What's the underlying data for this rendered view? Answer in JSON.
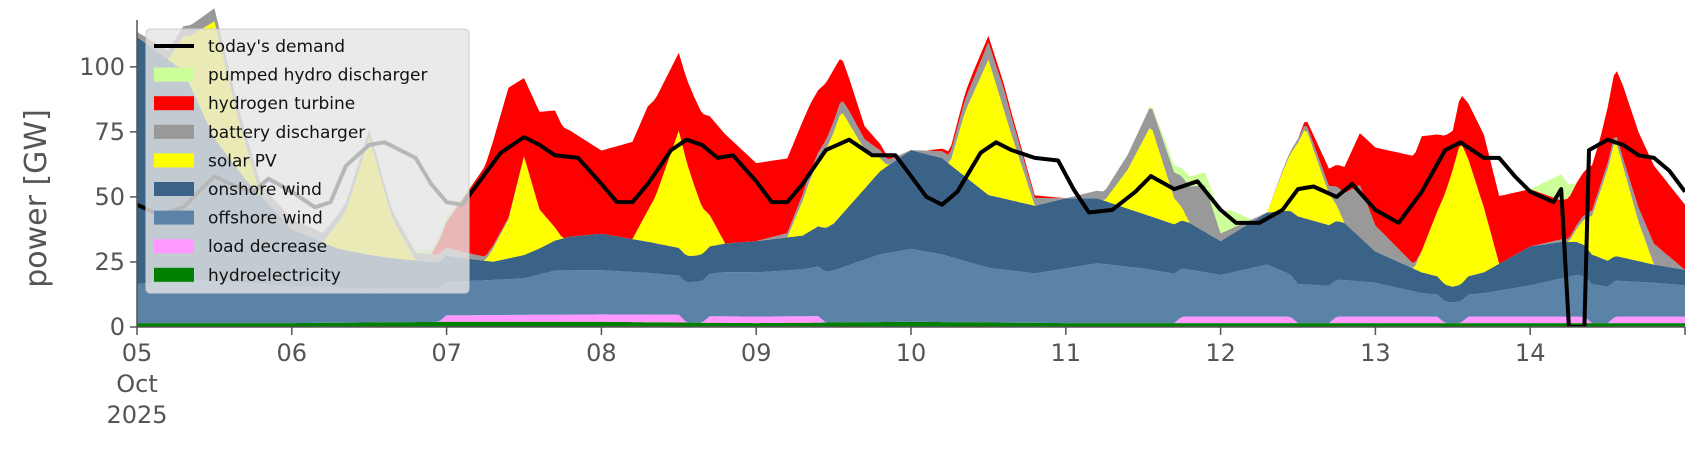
{
  "chart_data": {
    "type": "area",
    "ylabel": "power [GW]",
    "ylim": [
      0,
      118
    ],
    "yticks": [
      0,
      25,
      50,
      75,
      100
    ],
    "x_start": "2025-10-05T00:00",
    "x_end": "2025-10-15T00:00",
    "xlim_days": [
      0,
      10
    ],
    "x_ticks": [
      {
        "day": 0,
        "lines": [
          "05",
          "Oct",
          "2025"
        ]
      },
      {
        "day": 1,
        "lines": [
          "06"
        ]
      },
      {
        "day": 2,
        "lines": [
          "07"
        ]
      },
      {
        "day": 3,
        "lines": [
          "08"
        ]
      },
      {
        "day": 4,
        "lines": [
          "09"
        ]
      },
      {
        "day": 5,
        "lines": [
          "10"
        ]
      },
      {
        "day": 6,
        "lines": [
          "11"
        ]
      },
      {
        "day": 7,
        "lines": [
          "12"
        ]
      },
      {
        "day": 8,
        "lines": [
          "13"
        ]
      },
      {
        "day": 9,
        "lines": [
          "14"
        ]
      }
    ],
    "grid": false,
    "legend_position": "upper-left",
    "series": [
      {
        "name": "hydroelectricity",
        "color": "#008000",
        "points": [
          [
            0,
            1.5
          ],
          [
            1,
            1.5
          ],
          [
            2,
            2
          ],
          [
            3,
            2
          ],
          [
            4,
            1.5
          ],
          [
            5,
            2
          ],
          [
            6,
            1.5
          ],
          [
            7,
            1.5
          ],
          [
            8,
            1.5
          ],
          [
            9,
            1.5
          ],
          [
            10,
            1.5
          ]
        ]
      },
      {
        "name": "load decrease",
        "color": "#ff99ff",
        "points": [
          [
            0,
            0
          ],
          [
            1.95,
            0
          ],
          [
            2.0,
            2.5
          ],
          [
            3.5,
            3
          ],
          [
            3.55,
            0
          ],
          [
            3.65,
            0
          ],
          [
            3.7,
            2.5
          ],
          [
            4.4,
            2.5
          ],
          [
            4.45,
            0
          ],
          [
            6.7,
            0
          ],
          [
            6.75,
            2.5
          ],
          [
            7.45,
            2.5
          ],
          [
            7.5,
            0
          ],
          [
            7.7,
            0
          ],
          [
            7.75,
            2.5
          ],
          [
            8.4,
            2.5
          ],
          [
            8.45,
            0
          ],
          [
            8.55,
            0
          ],
          [
            8.6,
            2.5
          ],
          [
            9.35,
            2.5
          ],
          [
            9.4,
            0
          ],
          [
            9.5,
            0
          ],
          [
            9.55,
            2.5
          ],
          [
            10,
            2.5
          ]
        ]
      },
      {
        "name": "offshore wind",
        "color": "#5b83a8",
        "points": [
          [
            0,
            15
          ],
          [
            0.3,
            17
          ],
          [
            0.5,
            16
          ],
          [
            0.8,
            15
          ],
          [
            1,
            14
          ],
          [
            1.5,
            13
          ],
          [
            1.9,
            13
          ],
          [
            2.1,
            13
          ],
          [
            2.5,
            14
          ],
          [
            2.7,
            17
          ],
          [
            3,
            17
          ],
          [
            3.3,
            16
          ],
          [
            3.5,
            15
          ],
          [
            3.8,
            17
          ],
          [
            4,
            17
          ],
          [
            4.3,
            18
          ],
          [
            4.5,
            20
          ],
          [
            4.8,
            26
          ],
          [
            5,
            28
          ],
          [
            5.2,
            26
          ],
          [
            5.5,
            21
          ],
          [
            5.8,
            19
          ],
          [
            6,
            21
          ],
          [
            6.2,
            23
          ],
          [
            6.5,
            21
          ],
          [
            6.8,
            18
          ],
          [
            7,
            16
          ],
          [
            7.3,
            20
          ],
          [
            7.5,
            15
          ],
          [
            7.8,
            14
          ],
          [
            8,
            13
          ],
          [
            8.3,
            9
          ],
          [
            8.5,
            8
          ],
          [
            8.7,
            9
          ],
          [
            9,
            12
          ],
          [
            9.3,
            16
          ],
          [
            9.5,
            14
          ],
          [
            9.8,
            13
          ],
          [
            10,
            12
          ]
        ]
      },
      {
        "name": "onshore wind",
        "color": "#3b6387",
        "points": [
          [
            0,
            95
          ],
          [
            0.3,
            80
          ],
          [
            0.5,
            55
          ],
          [
            0.7,
            40
          ],
          [
            0.9,
            28
          ],
          [
            1,
            22
          ],
          [
            1.3,
            15
          ],
          [
            1.6,
            12
          ],
          [
            1.9,
            10
          ],
          [
            2,
            10
          ],
          [
            2.3,
            7
          ],
          [
            2.6,
            10
          ],
          [
            2.8,
            13
          ],
          [
            3,
            14
          ],
          [
            3.3,
            12
          ],
          [
            3.6,
            10
          ],
          [
            3.8,
            11
          ],
          [
            4,
            12
          ],
          [
            4.3,
            13
          ],
          [
            4.5,
            18
          ],
          [
            4.8,
            32
          ],
          [
            5,
            38
          ],
          [
            5.2,
            37
          ],
          [
            5.5,
            28
          ],
          [
            5.8,
            26
          ],
          [
            6,
            27
          ],
          [
            6.2,
            25
          ],
          [
            6.5,
            21
          ],
          [
            6.8,
            18
          ],
          [
            7,
            13
          ],
          [
            7.3,
            20
          ],
          [
            7.5,
            26
          ],
          [
            7.8,
            22
          ],
          [
            8,
            12
          ],
          [
            8.3,
            8
          ],
          [
            8.5,
            6
          ],
          [
            8.7,
            8
          ],
          [
            9,
            15
          ],
          [
            9.2,
            14
          ],
          [
            9.5,
            10
          ],
          [
            9.8,
            7
          ],
          [
            10,
            6
          ]
        ]
      },
      {
        "name": "solar PV",
        "color": "#ffff00",
        "points": [
          [
            0,
            0
          ],
          [
            0.2,
            0
          ],
          [
            0.35,
            20
          ],
          [
            0.5,
            45
          ],
          [
            0.65,
            20
          ],
          [
            0.8,
            0
          ],
          [
            1.2,
            0
          ],
          [
            1.35,
            15
          ],
          [
            1.5,
            45
          ],
          [
            1.65,
            15
          ],
          [
            1.8,
            0
          ],
          [
            2.25,
            0
          ],
          [
            2.4,
            15
          ],
          [
            2.5,
            38
          ],
          [
            2.6,
            15
          ],
          [
            2.75,
            0
          ],
          [
            3.2,
            0
          ],
          [
            3.35,
            18
          ],
          [
            3.5,
            45
          ],
          [
            3.65,
            18
          ],
          [
            3.8,
            0
          ],
          [
            4.2,
            0
          ],
          [
            4.35,
            20
          ],
          [
            4.55,
            40
          ],
          [
            4.7,
            15
          ],
          [
            4.85,
            0
          ],
          [
            5.25,
            0
          ],
          [
            5.35,
            25
          ],
          [
            5.5,
            52
          ],
          [
            5.65,
            25
          ],
          [
            5.8,
            0
          ],
          [
            6.25,
            0
          ],
          [
            6.4,
            15
          ],
          [
            6.55,
            35
          ],
          [
            6.7,
            10
          ],
          [
            6.8,
            0
          ],
          [
            7.3,
            0
          ],
          [
            7.4,
            15
          ],
          [
            7.55,
            35
          ],
          [
            7.7,
            12
          ],
          [
            7.8,
            0
          ],
          [
            8.25,
            0
          ],
          [
            8.4,
            25
          ],
          [
            8.55,
            55
          ],
          [
            8.7,
            25
          ],
          [
            8.8,
            0
          ],
          [
            9.25,
            0
          ],
          [
            9.4,
            15
          ],
          [
            9.55,
            45
          ],
          [
            9.7,
            15
          ],
          [
            9.8,
            0
          ],
          [
            10,
            0
          ]
        ]
      },
      {
        "name": "battery discharger",
        "color": "#999999",
        "points": [
          [
            0,
            2
          ],
          [
            0.5,
            5
          ],
          [
            1,
            4
          ],
          [
            1.5,
            3
          ],
          [
            2,
            3
          ],
          [
            2.5,
            0
          ],
          [
            3,
            0
          ],
          [
            4,
            0
          ],
          [
            4.6,
            5
          ],
          [
            4.8,
            3
          ],
          [
            5,
            0
          ],
          [
            5.6,
            8
          ],
          [
            5.8,
            3
          ],
          [
            6,
            0
          ],
          [
            6.7,
            10
          ],
          [
            6.9,
            18
          ],
          [
            7,
            3
          ],
          [
            7.3,
            0
          ],
          [
            7.7,
            3
          ],
          [
            7.9,
            20
          ],
          [
            8,
            10
          ],
          [
            8.3,
            0
          ],
          [
            9,
            0
          ],
          [
            9.6,
            3
          ],
          [
            9.8,
            8
          ],
          [
            10,
            0
          ]
        ]
      },
      {
        "name": "hydrogen turbine",
        "color": "#ff0000",
        "points": [
          [
            0,
            0
          ],
          [
            1.9,
            0
          ],
          [
            2.1,
            20
          ],
          [
            2.4,
            50
          ],
          [
            2.5,
            30
          ],
          [
            2.7,
            45
          ],
          [
            3,
            32
          ],
          [
            3.3,
            40
          ],
          [
            3.5,
            30
          ],
          [
            3.8,
            42
          ],
          [
            4,
            30
          ],
          [
            4.3,
            28
          ],
          [
            4.5,
            20
          ],
          [
            4.7,
            5
          ],
          [
            4.9,
            0
          ],
          [
            5.1,
            0
          ],
          [
            5.4,
            3
          ],
          [
            6,
            0
          ],
          [
            6.8,
            0
          ],
          [
            7.3,
            0
          ],
          [
            7.5,
            0
          ],
          [
            7.8,
            10
          ],
          [
            8,
            30
          ],
          [
            8.3,
            44
          ],
          [
            8.5,
            15
          ],
          [
            8.7,
            28
          ],
          [
            9,
            22
          ],
          [
            9.2,
            15
          ],
          [
            9.45,
            18
          ],
          [
            9.6,
            28
          ],
          [
            9.8,
            30
          ],
          [
            10,
            25
          ]
        ]
      },
      {
        "name": "pumped hydro discharger",
        "color": "#ccff99",
        "points": [
          [
            0,
            0
          ],
          [
            1.5,
            0
          ],
          [
            2,
            2
          ],
          [
            2.2,
            0
          ],
          [
            6.5,
            0
          ],
          [
            6.9,
            5
          ],
          [
            7.05,
            8
          ],
          [
            7.2,
            0
          ],
          [
            9,
            0
          ],
          [
            9.2,
            10
          ],
          [
            9.3,
            0
          ],
          [
            10,
            0
          ]
        ]
      }
    ],
    "demand": {
      "name": "today's demand",
      "color": "#000000",
      "points": [
        [
          0,
          47
        ],
        [
          0.15,
          43
        ],
        [
          0.3,
          46
        ],
        [
          0.45,
          55
        ],
        [
          0.5,
          58
        ],
        [
          0.6,
          55
        ],
        [
          0.75,
          52
        ],
        [
          0.85,
          57
        ],
        [
          1,
          52
        ],
        [
          1.15,
          46
        ],
        [
          1.25,
          48
        ],
        [
          1.35,
          62
        ],
        [
          1.5,
          70
        ],
        [
          1.6,
          71
        ],
        [
          1.7,
          68
        ],
        [
          1.8,
          65
        ],
        [
          1.9,
          55
        ],
        [
          2,
          48
        ],
        [
          2.1,
          47
        ],
        [
          2.2,
          55
        ],
        [
          2.35,
          67
        ],
        [
          2.5,
          73
        ],
        [
          2.6,
          70
        ],
        [
          2.7,
          66
        ],
        [
          2.85,
          65
        ],
        [
          3,
          55
        ],
        [
          3.1,
          48
        ],
        [
          3.2,
          48
        ],
        [
          3.3,
          55
        ],
        [
          3.45,
          68
        ],
        [
          3.55,
          72
        ],
        [
          3.65,
          70
        ],
        [
          3.75,
          65
        ],
        [
          3.85,
          66
        ],
        [
          4,
          56
        ],
        [
          4.1,
          48
        ],
        [
          4.2,
          48
        ],
        [
          4.3,
          55
        ],
        [
          4.45,
          68
        ],
        [
          4.6,
          72
        ],
        [
          4.75,
          66
        ],
        [
          4.9,
          66
        ],
        [
          5,
          58
        ],
        [
          5.1,
          50
        ],
        [
          5.2,
          47
        ],
        [
          5.3,
          52
        ],
        [
          5.45,
          67
        ],
        [
          5.55,
          71
        ],
        [
          5.65,
          68
        ],
        [
          5.8,
          65
        ],
        [
          5.95,
          64
        ],
        [
          6.05,
          53
        ],
        [
          6.15,
          44
        ],
        [
          6.3,
          45
        ],
        [
          6.45,
          52
        ],
        [
          6.55,
          58
        ],
        [
          6.7,
          53
        ],
        [
          6.85,
          56
        ],
        [
          7,
          45
        ],
        [
          7.1,
          40
        ],
        [
          7.25,
          40
        ],
        [
          7.4,
          45
        ],
        [
          7.5,
          53
        ],
        [
          7.6,
          54
        ],
        [
          7.75,
          50
        ],
        [
          7.85,
          55
        ],
        [
          8,
          45
        ],
        [
          8.15,
          40
        ],
        [
          8.3,
          52
        ],
        [
          8.45,
          68
        ],
        [
          8.55,
          71
        ],
        [
          8.7,
          65
        ],
        [
          8.8,
          65
        ],
        [
          8.9,
          58
        ],
        [
          9,
          52
        ],
        [
          9.15,
          48
        ],
        [
          9.2,
          53
        ],
        [
          9.25,
          0
        ],
        [
          9.35,
          0
        ],
        [
          9.38,
          68
        ],
        [
          9.5,
          72
        ],
        [
          9.6,
          70
        ],
        [
          9.7,
          66
        ],
        [
          9.8,
          65
        ],
        [
          9.9,
          60
        ],
        [
          10,
          52
        ]
      ]
    }
  }
}
